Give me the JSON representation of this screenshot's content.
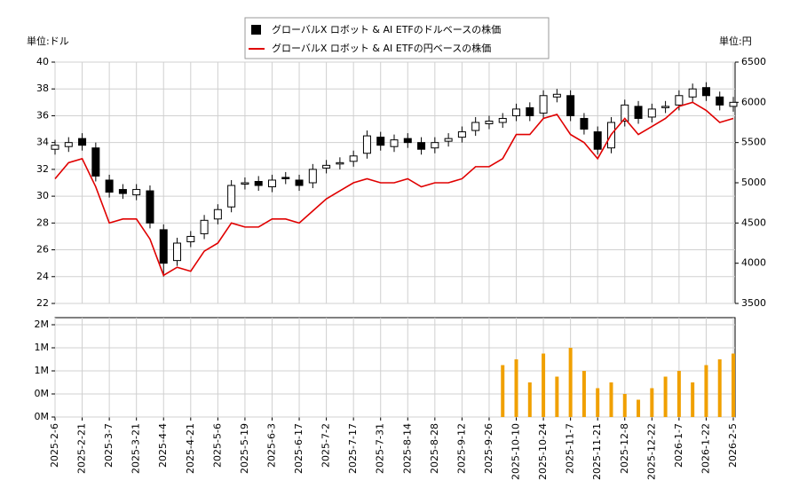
{
  "chart_data": [
    {
      "type": "candlestick",
      "legend": "top-center",
      "ylabel": "単位:ドル",
      "y2label": "単位:円",
      "ylim": [
        22,
        40
      ],
      "yticks": [
        22,
        24,
        26,
        28,
        30,
        32,
        34,
        36,
        38,
        40
      ],
      "y2lim": [
        3500,
        6500
      ],
      "y2ticks": [
        3500,
        4000,
        4500,
        5000,
        5500,
        6000,
        6500
      ],
      "grid": true,
      "series": [
        {
          "name": "グローバルX ロボット & AI ETFのドルベースの株価",
          "color": "#000000",
          "open": [
            33.5,
            33.7,
            34.3,
            33.6,
            31.2,
            30.5,
            30.1,
            30.4,
            27.5,
            25.2,
            26.6,
            27.2,
            28.3,
            29.2,
            30.9,
            31.1,
            30.7,
            31.4,
            31.2,
            31.0,
            32.1,
            32.4,
            32.6,
            33.2,
            34.4,
            33.7,
            34.3,
            34.0,
            33.6,
            34.1,
            34.4,
            34.9,
            35.4,
            35.5,
            36.0,
            36.6,
            36.2,
            37.4,
            37.5,
            35.8,
            34.8,
            33.6,
            35.6,
            36.7,
            35.9,
            36.6,
            36.8,
            37.4,
            38.1,
            37.4,
            36.7
          ],
          "high": [
            34.2,
            34.4,
            34.7,
            34.0,
            31.6,
            30.9,
            30.9,
            30.8,
            27.9,
            26.9,
            27.4,
            28.6,
            29.4,
            31.2,
            31.4,
            31.5,
            31.6,
            31.8,
            31.6,
            32.4,
            32.7,
            32.9,
            33.4,
            34.9,
            34.8,
            34.6,
            34.7,
            34.4,
            34.4,
            34.7,
            35.2,
            35.9,
            36.0,
            36.2,
            36.9,
            37.0,
            37.9,
            38.0,
            37.9,
            36.2,
            35.2,
            35.9,
            37.2,
            37.1,
            36.9,
            37.1,
            37.9,
            38.4,
            38.5,
            37.8,
            37.4
          ],
          "low": [
            33.1,
            33.3,
            33.4,
            31.1,
            29.9,
            29.8,
            29.7,
            27.6,
            24.0,
            24.8,
            26.2,
            26.8,
            27.9,
            28.8,
            30.5,
            30.4,
            30.3,
            30.9,
            30.4,
            30.6,
            31.7,
            32.0,
            32.2,
            32.8,
            33.4,
            33.3,
            33.6,
            33.1,
            33.2,
            33.7,
            34.0,
            34.5,
            35.0,
            35.1,
            35.6,
            35.6,
            35.8,
            37.0,
            35.6,
            34.6,
            33.1,
            33.2,
            35.2,
            35.4,
            35.5,
            36.2,
            36.4,
            37.0,
            37.1,
            36.4,
            36.3
          ],
          "close": [
            33.8,
            34.0,
            33.8,
            31.5,
            30.3,
            30.2,
            30.5,
            28.0,
            25.0,
            26.5,
            27.0,
            28.2,
            29.0,
            30.8,
            31.0,
            30.8,
            31.2,
            31.3,
            30.8,
            32.0,
            32.3,
            32.5,
            33.0,
            34.5,
            33.8,
            34.2,
            34.0,
            33.5,
            34.0,
            34.3,
            34.8,
            35.5,
            35.6,
            35.8,
            36.5,
            36.0,
            37.5,
            37.6,
            36.0,
            35.0,
            33.5,
            35.5,
            36.8,
            35.8,
            36.5,
            36.7,
            37.5,
            38.0,
            37.5,
            36.8,
            37.0
          ]
        },
        {
          "name": "グローバルX ロボット & AI ETFの円ベースの株価",
          "color": "#e00000",
          "axis": "y2",
          "values": [
            5050,
            5250,
            5300,
            4950,
            4500,
            4550,
            4550,
            4300,
            3850,
            3950,
            3900,
            4150,
            4250,
            4500,
            4450,
            4450,
            4550,
            4550,
            4500,
            4650,
            4800,
            4900,
            5000,
            5050,
            5000,
            5000,
            5050,
            4950,
            5000,
            5000,
            5050,
            5200,
            5200,
            5300,
            5600,
            5600,
            5800,
            5850,
            5600,
            5500,
            5300,
            5600,
            5800,
            5600,
            5700,
            5800,
            5950,
            6000,
            5900,
            5750,
            5800
          ]
        }
      ]
    },
    {
      "type": "bar",
      "color": "#f0a000",
      "categories": [
        "2025-2-6",
        null,
        "2025-2-21",
        null,
        "2025-3-7",
        null,
        "2025-3-21",
        null,
        "2025-4-4",
        null,
        "2025-4-21",
        null,
        "2025-5-6",
        null,
        "2025-5-19",
        null,
        "2025-6-3",
        null,
        "2025-6-17",
        null,
        "2025-7-2",
        null,
        "2025-7-17",
        null,
        "2025-7-31",
        null,
        "2025-8-14",
        null,
        "2025-8-28",
        null,
        "2025-9-12",
        null,
        "2025-9-26",
        null,
        "2025-10-10",
        null,
        "2025-10-24",
        null,
        "2025-11-7",
        null,
        "2025-11-21",
        null,
        "2025-12-8",
        null,
        "2025-12-22",
        null,
        "2026-1-7",
        null,
        "2026-1-22",
        null,
        "2026-2-5"
      ],
      "values": [
        null,
        null,
        null,
        null,
        null,
        null,
        null,
        null,
        null,
        null,
        null,
        null,
        null,
        null,
        null,
        null,
        null,
        null,
        null,
        null,
        null,
        null,
        null,
        null,
        null,
        null,
        null,
        null,
        null,
        null,
        null,
        null,
        null,
        900000,
        1000000,
        600000,
        1100000,
        700000,
        1200000,
        800000,
        500000,
        600000,
        400000,
        300000,
        500000,
        700000,
        800000,
        600000,
        900000,
        1000000,
        1100000
      ],
      "ylim": [
        0,
        1723000
      ],
      "yticks": [
        {
          "value": 0,
          "label": "0M"
        },
        {
          "value": 400000,
          "label": "0M"
        },
        {
          "value": 800000,
          "label": "1M"
        },
        {
          "value": 1200000,
          "label": "1M"
        },
        {
          "value": 1600000,
          "label": "2M"
        }
      ],
      "grid": true
    }
  ]
}
